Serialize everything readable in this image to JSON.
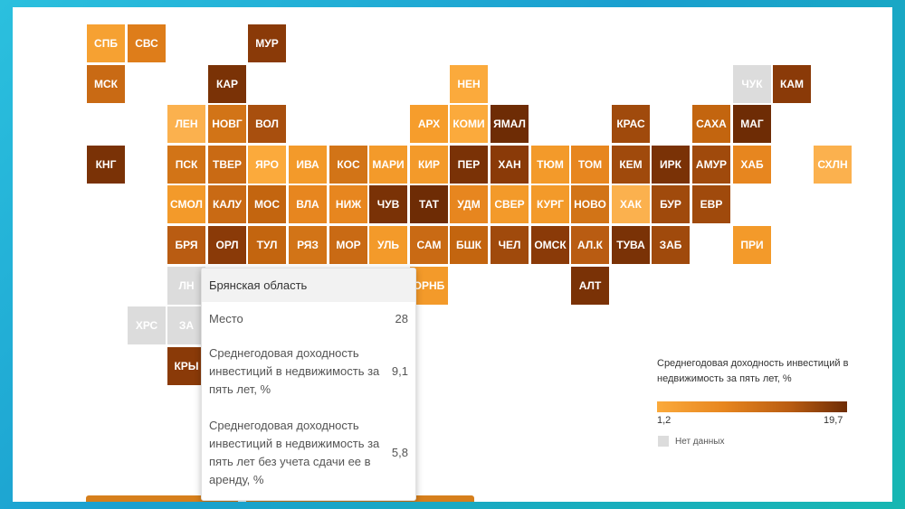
{
  "chart_data": {
    "type": "heatmap",
    "legend": {
      "title": "Среднегодовая доходность инвестиций в недвижимость за пять лет, %",
      "min_label": "1,2",
      "max_label": "19,7",
      "min": 1.2,
      "max": 19.7,
      "nodata_label": "Нет данных",
      "nodata_color": "#dcdcdc",
      "gradient": [
        "#fbaa3c",
        "#e7861f",
        "#b95c12",
        "#6e2c05"
      ]
    },
    "tiles": [
      {
        "label": "СПБ",
        "row": 0,
        "col": 0,
        "color": "#f6a132"
      },
      {
        "label": "СВС",
        "row": 0,
        "col": 1,
        "color": "#de7d1a"
      },
      {
        "label": "МУР",
        "row": 0,
        "col": 4,
        "color": "#8a3a08"
      },
      {
        "label": "МСК",
        "row": 1,
        "col": 0,
        "color": "#c96a14"
      },
      {
        "label": "КАР",
        "row": 1,
        "col": 3,
        "color": "#7a3206"
      },
      {
        "label": "НЕН",
        "row": 1,
        "col": 9,
        "color": "#fbaa3c"
      },
      {
        "label": "ЧУК",
        "row": 1,
        "col": 16,
        "color": "#dcdcdc",
        "nodata": true
      },
      {
        "label": "КАМ",
        "row": 1,
        "col": 17,
        "color": "#8a3a08"
      },
      {
        "label": "ЛЕН",
        "row": 2,
        "col": 2,
        "color": "#fbb14e"
      },
      {
        "label": "НОВГ",
        "row": 2,
        "col": 3,
        "color": "#d27417"
      },
      {
        "label": "ВОЛ",
        "row": 2,
        "col": 4,
        "color": "#a84f0e"
      },
      {
        "label": "АРХ",
        "row": 2,
        "col": 8,
        "color": "#f69d2c"
      },
      {
        "label": "КОМИ",
        "row": 2,
        "col": 9,
        "color": "#fbaa3c"
      },
      {
        "label": "ЯМАЛ",
        "row": 2,
        "col": 10,
        "color": "#6e2c05"
      },
      {
        "label": "КРАС",
        "row": 2,
        "col": 13,
        "color": "#a04a0c"
      },
      {
        "label": "САХА",
        "row": 2,
        "col": 15,
        "color": "#c3650f"
      },
      {
        "label": "МАГ",
        "row": 2,
        "col": 16,
        "color": "#6e2c05"
      },
      {
        "label": "КНГ",
        "row": 3,
        "col": 0,
        "color": "#7a3206"
      },
      {
        "label": "ПСК",
        "row": 3,
        "col": 2,
        "color": "#d27417"
      },
      {
        "label": "ТВЕР",
        "row": 3,
        "col": 3,
        "color": "#c96a14"
      },
      {
        "label": "ЯРО",
        "row": 3,
        "col": 4,
        "color": "#fbaa3c"
      },
      {
        "label": "ИВА",
        "row": 3,
        "col": 5,
        "color": "#f39a2a"
      },
      {
        "label": "КОС",
        "row": 3,
        "col": 6,
        "color": "#d27417"
      },
      {
        "label": "МАРИ",
        "row": 3,
        "col": 7,
        "color": "#f39a2a"
      },
      {
        "label": "КИР",
        "row": 3,
        "col": 8,
        "color": "#f39a2a"
      },
      {
        "label": "ПЕР",
        "row": 3,
        "col": 9,
        "color": "#7a3206"
      },
      {
        "label": "ХАН",
        "row": 3,
        "col": 10,
        "color": "#8a3a08"
      },
      {
        "label": "ТЮМ",
        "row": 3,
        "col": 11,
        "color": "#f39a2a"
      },
      {
        "label": "ТОМ",
        "row": 3,
        "col": 12,
        "color": "#e7861f"
      },
      {
        "label": "КЕМ",
        "row": 3,
        "col": 13,
        "color": "#a04a0c"
      },
      {
        "label": "ИРК",
        "row": 3,
        "col": 14,
        "color": "#7a3206"
      },
      {
        "label": "АМУР",
        "row": 3,
        "col": 15,
        "color": "#a04a0c"
      },
      {
        "label": "ХАБ",
        "row": 3,
        "col": 16,
        "color": "#e7861f"
      },
      {
        "label": "СХЛН",
        "row": 3,
        "col": 18,
        "color": "#fbb14e"
      },
      {
        "label": "СМОЛ",
        "row": 4,
        "col": 2,
        "color": "#f39a2a"
      },
      {
        "label": "КАЛУ",
        "row": 4,
        "col": 3,
        "color": "#c96a14"
      },
      {
        "label": "МОС",
        "row": 4,
        "col": 4,
        "color": "#c3650f"
      },
      {
        "label": "ВЛА",
        "row": 4,
        "col": 5,
        "color": "#e7861f"
      },
      {
        "label": "НИЖ",
        "row": 4,
        "col": 6,
        "color": "#e7861f"
      },
      {
        "label": "ЧУВ",
        "row": 4,
        "col": 7,
        "color": "#7a3206"
      },
      {
        "label": "ТАТ",
        "row": 4,
        "col": 8,
        "color": "#6e2c05"
      },
      {
        "label": "УДМ",
        "row": 4,
        "col": 9,
        "color": "#e7861f"
      },
      {
        "label": "СВЕР",
        "row": 4,
        "col": 10,
        "color": "#f39a2a"
      },
      {
        "label": "КУРГ",
        "row": 4,
        "col": 11,
        "color": "#f39a2a"
      },
      {
        "label": "НОВО",
        "row": 4,
        "col": 12,
        "color": "#d27417"
      },
      {
        "label": "ХАК",
        "row": 4,
        "col": 13,
        "color": "#fbb14e"
      },
      {
        "label": "БУР",
        "row": 4,
        "col": 14,
        "color": "#a04a0c"
      },
      {
        "label": "ЕВР",
        "row": 4,
        "col": 15,
        "color": "#a04a0c"
      },
      {
        "label": "БРЯ",
        "row": 5,
        "col": 2,
        "color": "#b95c12"
      },
      {
        "label": "ОРЛ",
        "row": 5,
        "col": 3,
        "color": "#8a3a08"
      },
      {
        "label": "ТУЛ",
        "row": 5,
        "col": 4,
        "color": "#c3650f"
      },
      {
        "label": "РЯЗ",
        "row": 5,
        "col": 5,
        "color": "#d27417"
      },
      {
        "label": "МОР",
        "row": 5,
        "col": 6,
        "color": "#c96a14"
      },
      {
        "label": "УЛЬ",
        "row": 5,
        "col": 7,
        "color": "#f39a2a"
      },
      {
        "label": "САМ",
        "row": 5,
        "col": 8,
        "color": "#c96a14"
      },
      {
        "label": "БШК",
        "row": 5,
        "col": 9,
        "color": "#c3650f"
      },
      {
        "label": "ЧЕЛ",
        "row": 5,
        "col": 10,
        "color": "#a04a0c"
      },
      {
        "label": "ОМСК",
        "row": 5,
        "col": 11,
        "color": "#8a3a08"
      },
      {
        "label": "АЛ.К",
        "row": 5,
        "col": 12,
        "color": "#b95c12"
      },
      {
        "label": "ТУВА",
        "row": 5,
        "col": 13,
        "color": "#7a3206"
      },
      {
        "label": "ЗАБ",
        "row": 5,
        "col": 14,
        "color": "#a04a0c"
      },
      {
        "label": "ПРИ",
        "row": 5,
        "col": 16,
        "color": "#f39a2a"
      },
      {
        "label": "ЛН",
        "row": 6,
        "col": 2,
        "color": "#dcdcdc",
        "nodata": true
      },
      {
        "label": "ОРНБ",
        "row": 6,
        "col": 8,
        "color": "#f39a2a"
      },
      {
        "label": "АЛТ",
        "row": 6,
        "col": 12,
        "color": "#7a3206"
      },
      {
        "label": "ХРС",
        "row": 7,
        "col": 1,
        "color": "#dcdcdc",
        "nodata": true
      },
      {
        "label": "ЗА",
        "row": 7,
        "col": 2,
        "color": "#dcdcdc",
        "nodata": true
      },
      {
        "label": "КРЫ",
        "row": 8,
        "col": 2,
        "color": "#8a3a08"
      },
      {
        "label": "",
        "row": 8,
        "col": 7,
        "color": "#f39a2a"
      },
      {
        "label": "",
        "row": 9,
        "col": 7,
        "color": "#e7861f"
      }
    ],
    "tooltip": {
      "region": "Брянская область",
      "rows": [
        {
          "label": "Место",
          "value": "28"
        },
        {
          "label": "Среднегодовая доходность инвестиций в недвижимость за пять лет, %",
          "value": "9,1"
        },
        {
          "label": "Среднегодовая доходность инвестиций в недвижимость за пять лет без учета сдачи ее в аренду, %",
          "value": "5,8"
        }
      ]
    }
  }
}
